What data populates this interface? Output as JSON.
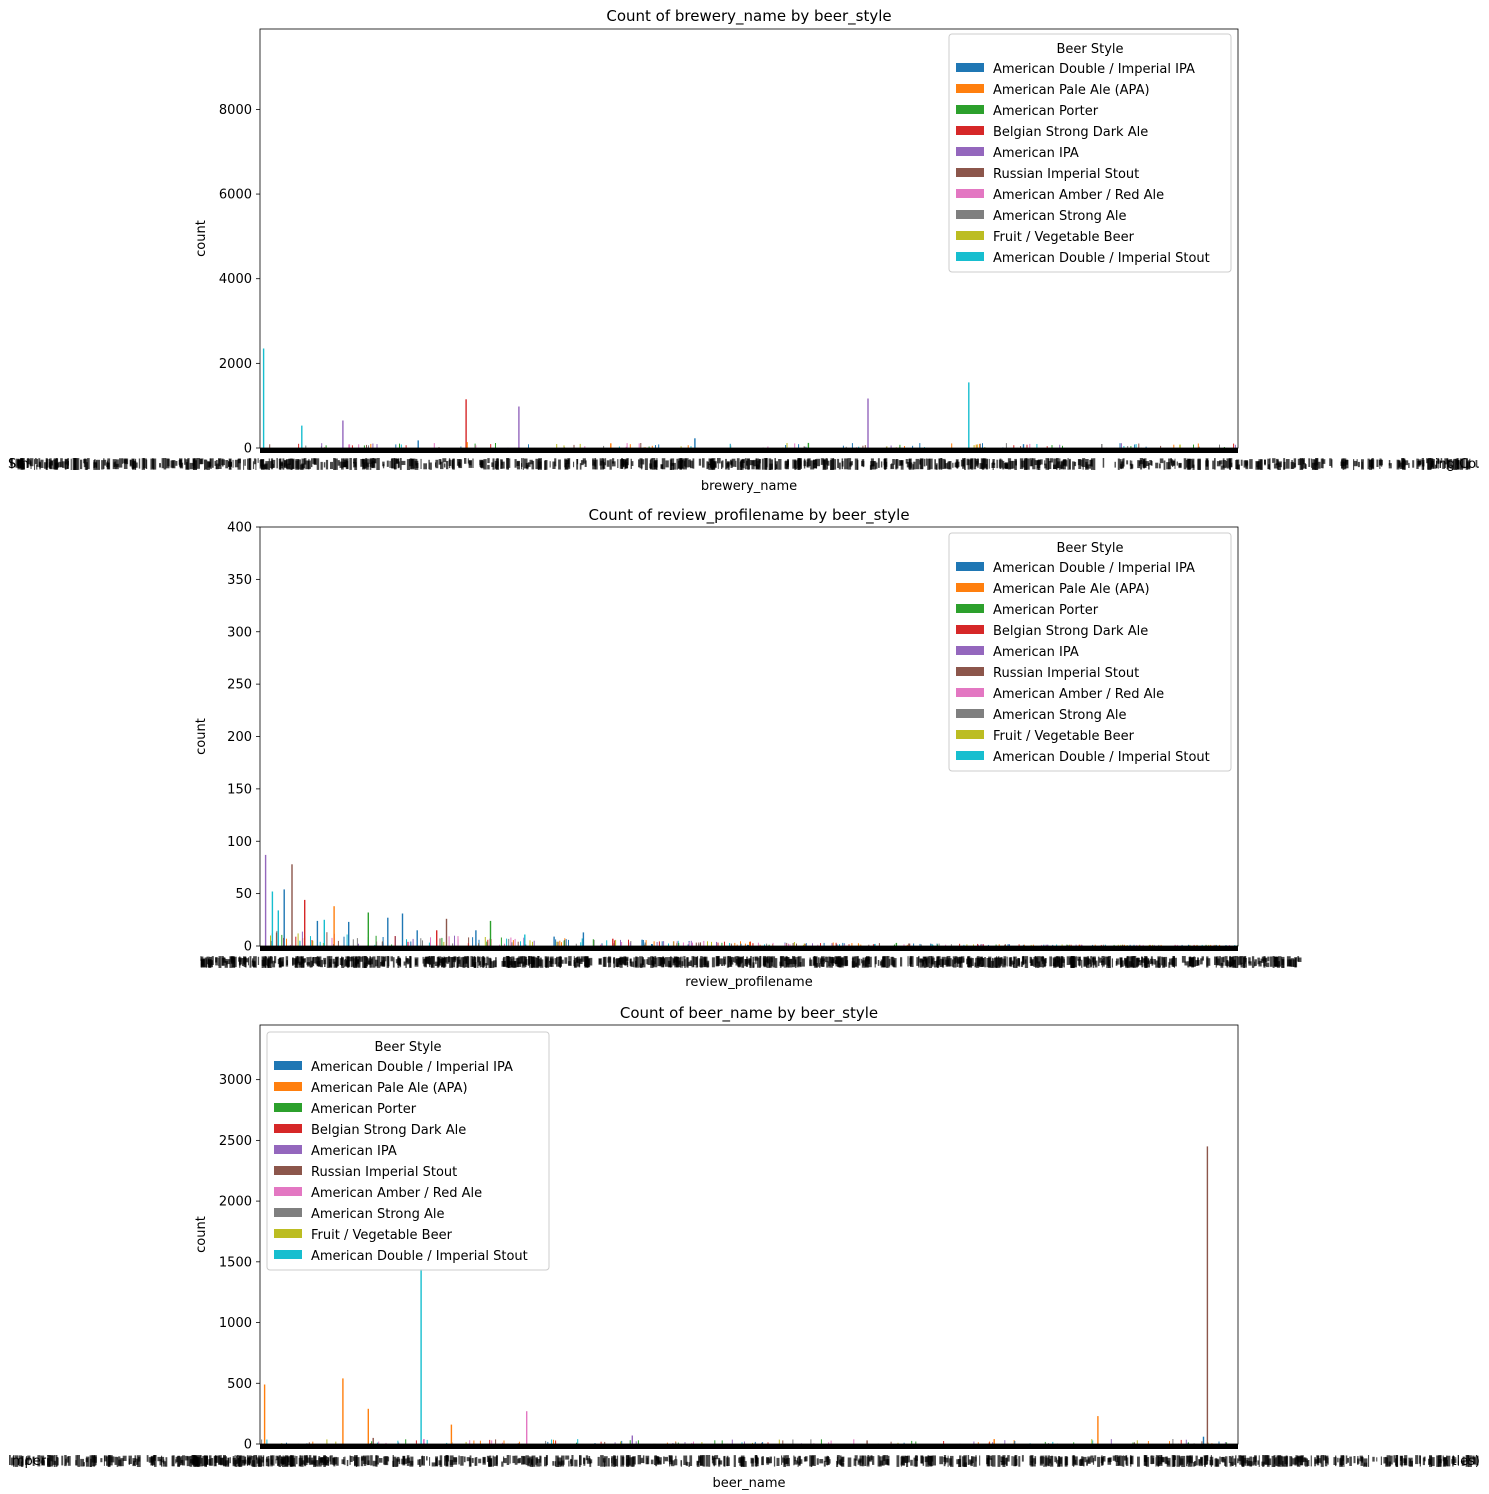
{
  "chart_data": [
    {
      "type": "bar",
      "title": "Count of brewery_name by beer_style",
      "xlabel": "brewery_name",
      "ylabel": "count",
      "ylim": [
        0,
        9900
      ],
      "yticks": [
        0,
        2000,
        4000,
        6000,
        8000
      ],
      "legend": {
        "title": "Beer Style",
        "position": "top-right"
      },
      "x_tick_labels_visible": [
        "Sm",
        "ing Co."
      ],
      "series": [
        {
          "name": "American Double / Imperial IPA",
          "color": "#1f77b4"
        },
        {
          "name": "American Pale Ale (APA)",
          "color": "#ff7f0e"
        },
        {
          "name": "American Porter",
          "color": "#2ca02c"
        },
        {
          "name": "Belgian Strong Dark Ale",
          "color": "#d62728"
        },
        {
          "name": "American IPA",
          "color": "#9467bd"
        },
        {
          "name": "Russian Imperial Stout",
          "color": "#8c564b"
        },
        {
          "name": "American Amber / Red Ale",
          "color": "#e377c2"
        },
        {
          "name": "American Strong Ale",
          "color": "#7f7f7f"
        },
        {
          "name": "Fruit / Vegetable Beer",
          "color": "#bcbd22"
        },
        {
          "name": "American Double / Imperial Stout",
          "color": "#17becf"
        }
      ],
      "notable_bars": [
        {
          "x": 0.003,
          "value": 2350,
          "series": 9
        },
        {
          "x": 0.042,
          "value": 530,
          "series": 9
        },
        {
          "x": 0.084,
          "value": 650,
          "series": 4
        },
        {
          "x": 0.21,
          "value": 1150,
          "series": 3
        },
        {
          "x": 0.264,
          "value": 980,
          "series": 4
        },
        {
          "x": 0.444,
          "value": 230,
          "series": 0
        },
        {
          "x": 0.621,
          "value": 1170,
          "series": 4
        },
        {
          "x": 0.724,
          "value": 1550,
          "series": 9
        },
        {
          "x": 0.211,
          "value": 140,
          "series": 1
        },
        {
          "x": 0.161,
          "value": 180,
          "series": 0
        },
        {
          "x": 0.358,
          "value": 110,
          "series": 1
        },
        {
          "x": 0.56,
          "value": 120,
          "series": 2
        },
        {
          "x": 0.78,
          "value": 90,
          "series": 0
        },
        {
          "x": 0.86,
          "value": 95,
          "series": 7
        },
        {
          "x": 0.94,
          "value": 80,
          "series": 8
        }
      ]
    },
    {
      "type": "bar",
      "title": "Count of review_profilename by beer_style",
      "xlabel": "review_profilename",
      "ylabel": "count",
      "ylim": [
        0,
        400
      ],
      "yticks": [
        0,
        50,
        100,
        150,
        200,
        250,
        300,
        350,
        400
      ],
      "legend": {
        "title": "Beer Style",
        "position": "top-right"
      },
      "series": [
        {
          "name": "American Double / Imperial IPA",
          "color": "#1f77b4"
        },
        {
          "name": "American Pale Ale (APA)",
          "color": "#ff7f0e"
        },
        {
          "name": "American Porter",
          "color": "#2ca02c"
        },
        {
          "name": "Belgian Strong Dark Ale",
          "color": "#d62728"
        },
        {
          "name": "American IPA",
          "color": "#9467bd"
        },
        {
          "name": "Russian Imperial Stout",
          "color": "#8c564b"
        },
        {
          "name": "American Amber / Red Ale",
          "color": "#e377c2"
        },
        {
          "name": "American Strong Ale",
          "color": "#7f7f7f"
        },
        {
          "name": "Fruit / Vegetable Beer",
          "color": "#bcbd22"
        },
        {
          "name": "American Double / Imperial Stout",
          "color": "#17becf"
        }
      ],
      "notable_bars": [
        {
          "x": 0.005,
          "value": 87,
          "series": 4
        },
        {
          "x": 0.012,
          "value": 52,
          "series": 9
        },
        {
          "x": 0.018,
          "value": 34,
          "series": 9
        },
        {
          "x": 0.024,
          "value": 54,
          "series": 0
        },
        {
          "x": 0.032,
          "value": 78,
          "series": 5
        },
        {
          "x": 0.045,
          "value": 44,
          "series": 3
        },
        {
          "x": 0.058,
          "value": 24,
          "series": 0
        },
        {
          "x": 0.065,
          "value": 25,
          "series": 9
        },
        {
          "x": 0.075,
          "value": 38,
          "series": 1
        },
        {
          "x": 0.09,
          "value": 23,
          "series": 0
        },
        {
          "x": 0.11,
          "value": 32,
          "series": 2
        },
        {
          "x": 0.13,
          "value": 27,
          "series": 0
        },
        {
          "x": 0.145,
          "value": 31,
          "series": 0
        },
        {
          "x": 0.16,
          "value": 15,
          "series": 0
        },
        {
          "x": 0.18,
          "value": 15,
          "series": 3
        },
        {
          "x": 0.19,
          "value": 26,
          "series": 5
        },
        {
          "x": 0.22,
          "value": 15,
          "series": 0
        },
        {
          "x": 0.235,
          "value": 24,
          "series": 2
        },
        {
          "x": 0.27,
          "value": 11,
          "series": 9
        },
        {
          "x": 0.3,
          "value": 9,
          "series": 0
        },
        {
          "x": 0.33,
          "value": 13,
          "series": 0
        },
        {
          "x": 0.36,
          "value": 7,
          "series": 3
        },
        {
          "x": 0.39,
          "value": 6,
          "series": 0
        },
        {
          "x": 0.5,
          "value": 4,
          "series": 1
        },
        {
          "x": 0.65,
          "value": 3,
          "series": 2
        }
      ]
    },
    {
      "type": "bar",
      "title": "Count of beer_name by beer_style",
      "xlabel": "beer_name",
      "ylabel": "count",
      "ylim": [
        0,
        3450
      ],
      "yticks": [
        0,
        500,
        1000,
        1500,
        2000,
        2500,
        3000
      ],
      "legend": {
        "title": "Beer Style",
        "position": "top-left"
      },
      "x_tick_labels_visible": [
        "Imperi",
        "tles)"
      ],
      "series": [
        {
          "name": "American Double / Imperial IPA",
          "color": "#1f77b4"
        },
        {
          "name": "American Pale Ale (APA)",
          "color": "#ff7f0e"
        },
        {
          "name": "American Porter",
          "color": "#2ca02c"
        },
        {
          "name": "Belgian Strong Dark Ale",
          "color": "#d62728"
        },
        {
          "name": "American IPA",
          "color": "#9467bd"
        },
        {
          "name": "Russian Imperial Stout",
          "color": "#8c564b"
        },
        {
          "name": "American Amber / Red Ale",
          "color": "#e377c2"
        },
        {
          "name": "American Strong Ale",
          "color": "#7f7f7f"
        },
        {
          "name": "Fruit / Vegetable Beer",
          "color": "#bcbd22"
        },
        {
          "name": "American Double / Imperial Stout",
          "color": "#17becf"
        }
      ],
      "notable_bars": [
        {
          "x": 0.004,
          "value": 490,
          "series": 1
        },
        {
          "x": 0.084,
          "value": 540,
          "series": 1
        },
        {
          "x": 0.11,
          "value": 290,
          "series": 1
        },
        {
          "x": 0.115,
          "value": 50,
          "series": 5
        },
        {
          "x": 0.164,
          "value": 1440,
          "series": 9
        },
        {
          "x": 0.195,
          "value": 160,
          "series": 1
        },
        {
          "x": 0.272,
          "value": 270,
          "series": 6
        },
        {
          "x": 0.38,
          "value": 70,
          "series": 4
        },
        {
          "x": 0.62,
          "value": 30,
          "series": 5
        },
        {
          "x": 0.75,
          "value": 40,
          "series": 1
        },
        {
          "x": 0.856,
          "value": 230,
          "series": 1
        },
        {
          "x": 0.964,
          "value": 60,
          "series": 0
        },
        {
          "x": 0.968,
          "value": 2450,
          "series": 5
        }
      ]
    }
  ]
}
